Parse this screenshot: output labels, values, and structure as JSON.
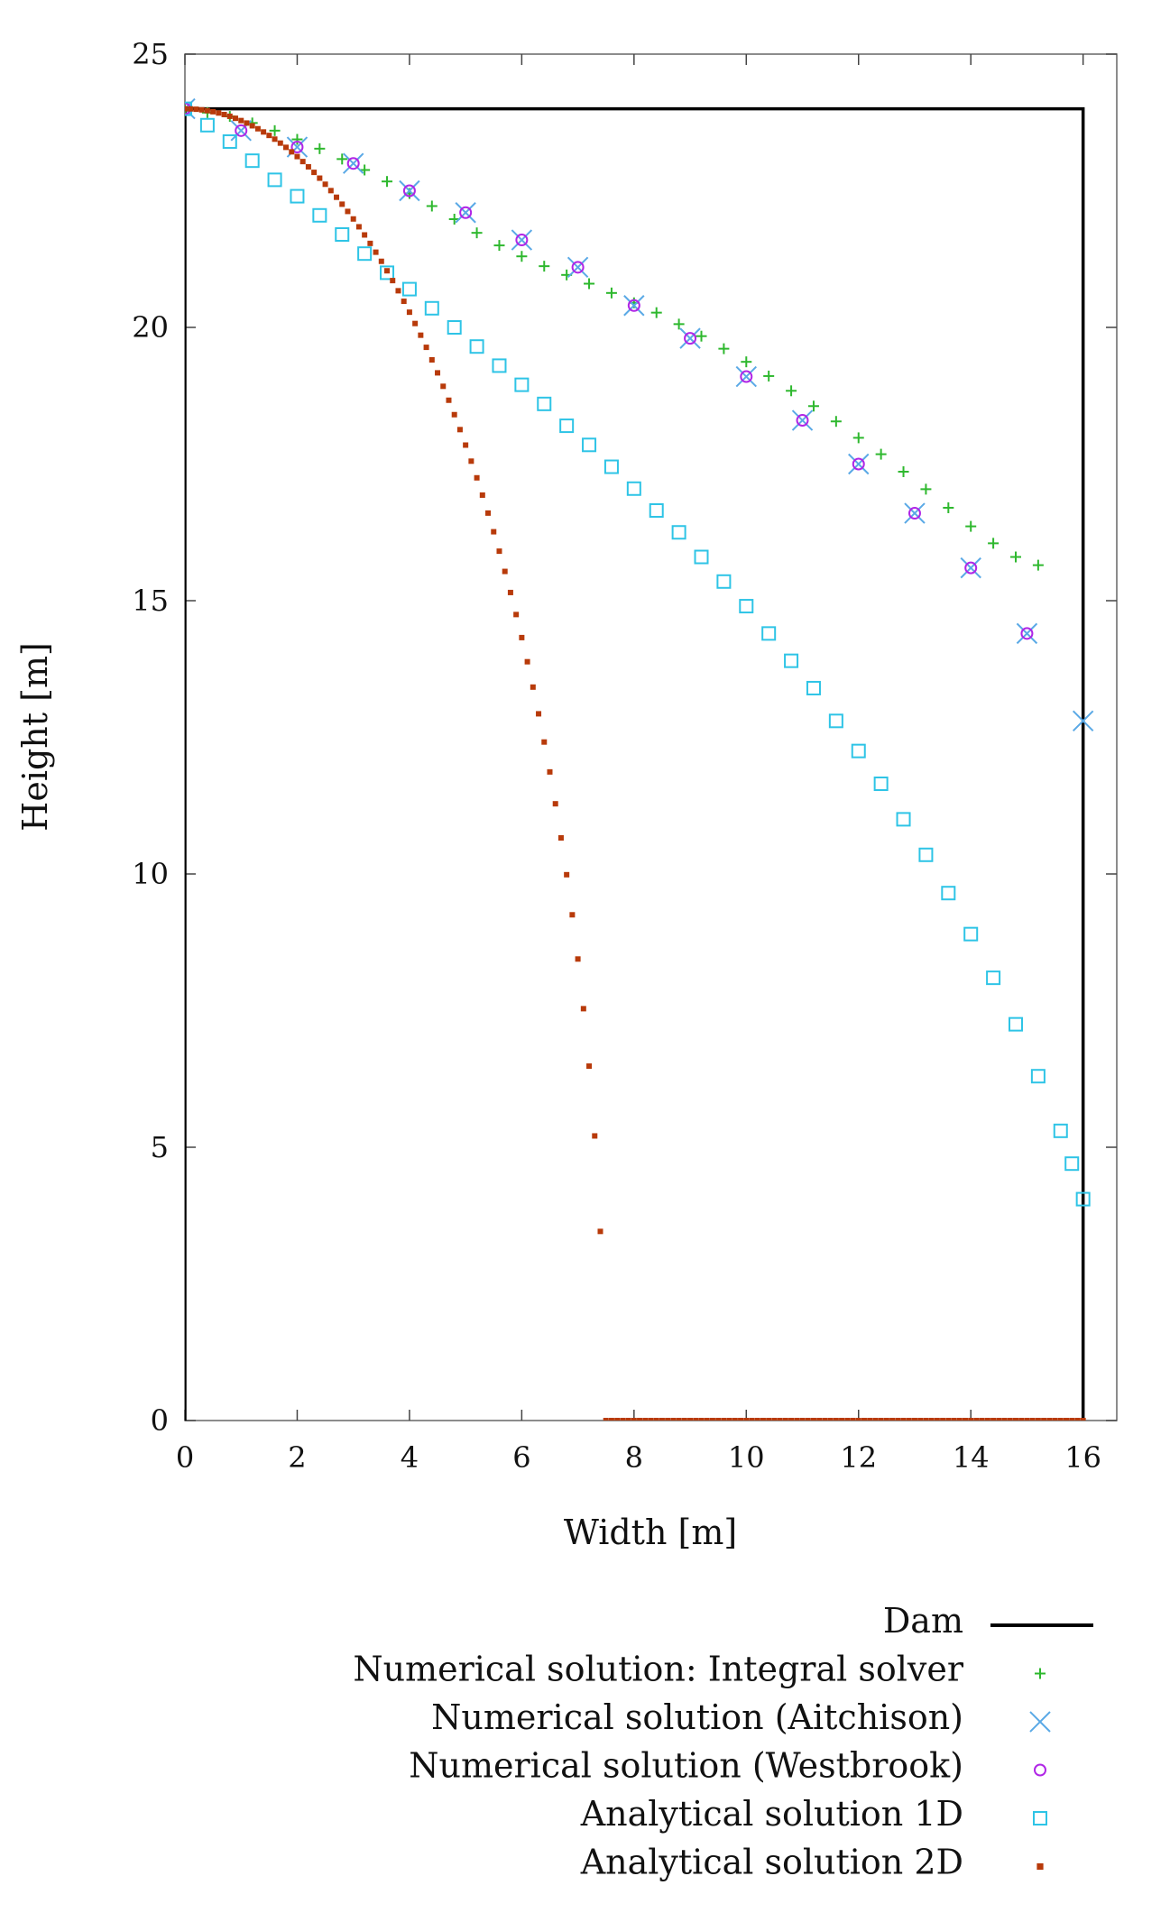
{
  "chart_data": {
    "type": "scatter",
    "title": "",
    "xlabel": "Width [m]",
    "ylabel": "Height [m]",
    "xlim": [
      0,
      16.6
    ],
    "ylim": [
      0,
      25
    ],
    "xticks": [
      "0",
      "2",
      "4",
      "6",
      "8",
      "10",
      "12",
      "14",
      "16"
    ],
    "yticks": [
      "0",
      "5",
      "10",
      "15",
      "20",
      "25"
    ],
    "grid": false,
    "legend_position": "below-right",
    "dam": {
      "name": "Dam",
      "x": [
        0,
        0,
        16,
        16
      ],
      "y": [
        0,
        24,
        24,
        0
      ],
      "color": "#000000"
    },
    "series": [
      {
        "name": "Numerical solution: Integral solver",
        "marker": "plus",
        "color": "#2eb82e",
        "x": [
          0,
          0.4,
          0.8,
          1.2,
          1.6,
          2,
          2.4,
          2.8,
          3.2,
          3.6,
          4,
          4.4,
          4.8,
          5.2,
          5.6,
          6,
          6.4,
          6.8,
          7.2,
          7.6,
          8,
          8.4,
          8.8,
          9.2,
          9.6,
          10,
          10.4,
          10.8,
          11.2,
          11.6,
          12,
          12.4,
          12.8,
          13.2,
          13.6,
          14,
          14.4,
          14.8,
          15.2
        ],
        "y": [
          24,
          23.93,
          23.86,
          23.74,
          23.6,
          23.44,
          23.27,
          23.08,
          22.88,
          22.67,
          22.45,
          22.22,
          21.98,
          21.73,
          21.5,
          21.3,
          21.12,
          20.96,
          20.8,
          20.63,
          20.45,
          20.27,
          20.06,
          19.84,
          19.61,
          19.37,
          19.11,
          18.84,
          18.56,
          18.28,
          17.98,
          17.68,
          17.36,
          17.04,
          16.7,
          16.36,
          16.05,
          15.8,
          15.65
        ]
      },
      {
        "name": "Numerical solution (Aitchison)",
        "marker": "cross",
        "color": "#5aa9e6",
        "x": [
          0,
          1,
          2,
          3,
          4,
          5,
          6,
          7,
          8,
          9,
          10,
          11,
          12,
          13,
          14,
          15,
          16
        ],
        "y": [
          24,
          23.6,
          23.3,
          23.0,
          22.5,
          22.1,
          21.6,
          21.1,
          20.4,
          19.8,
          19.1,
          18.3,
          17.5,
          16.6,
          15.6,
          14.4,
          12.8
        ]
      },
      {
        "name": "Numerical solution (Westbrook)",
        "marker": "circle",
        "color": "#b026e6",
        "x": [
          0,
          1,
          2,
          3,
          4,
          5,
          6,
          7,
          8,
          9,
          10,
          11,
          12,
          13,
          14,
          15
        ],
        "y": [
          24,
          23.6,
          23.3,
          23.0,
          22.5,
          22.1,
          21.6,
          21.1,
          20.4,
          19.8,
          19.1,
          18.3,
          17.5,
          16.6,
          15.6,
          14.4
        ]
      },
      {
        "name": "Analytical solution 1D",
        "marker": "square",
        "color": "#2ec4e6",
        "x": [
          0,
          0.4,
          0.8,
          1.2,
          1.6,
          2,
          2.4,
          2.8,
          3.2,
          3.6,
          4,
          4.4,
          4.8,
          5.2,
          5.6,
          6,
          6.4,
          6.8,
          7.2,
          7.6,
          8,
          8.4,
          8.8,
          9.2,
          9.6,
          10,
          10.4,
          10.8,
          11.2,
          11.6,
          12,
          12.4,
          12.8,
          13.2,
          13.6,
          14,
          14.4,
          14.8,
          15.2,
          15.6,
          15.8,
          16
        ],
        "y": [
          24,
          23.7,
          23.4,
          23.05,
          22.7,
          22.4,
          22.05,
          21.7,
          21.35,
          21.0,
          20.7,
          20.35,
          20.0,
          19.65,
          19.3,
          18.95,
          18.6,
          18.2,
          17.85,
          17.45,
          17.05,
          16.65,
          16.25,
          15.8,
          15.35,
          14.9,
          14.4,
          13.9,
          13.4,
          12.8,
          12.25,
          11.65,
          11.0,
          10.35,
          9.65,
          8.9,
          8.1,
          7.25,
          6.3,
          5.3,
          4.7,
          4.05
        ]
      },
      {
        "name": "Analytical solution 2D",
        "marker": "dot",
        "color": "#b83a0a",
        "formula": "h = sqrt(576 - 10.3 x^2)",
        "x_range": [
          0,
          16
        ],
        "samples": 161
      }
    ]
  }
}
